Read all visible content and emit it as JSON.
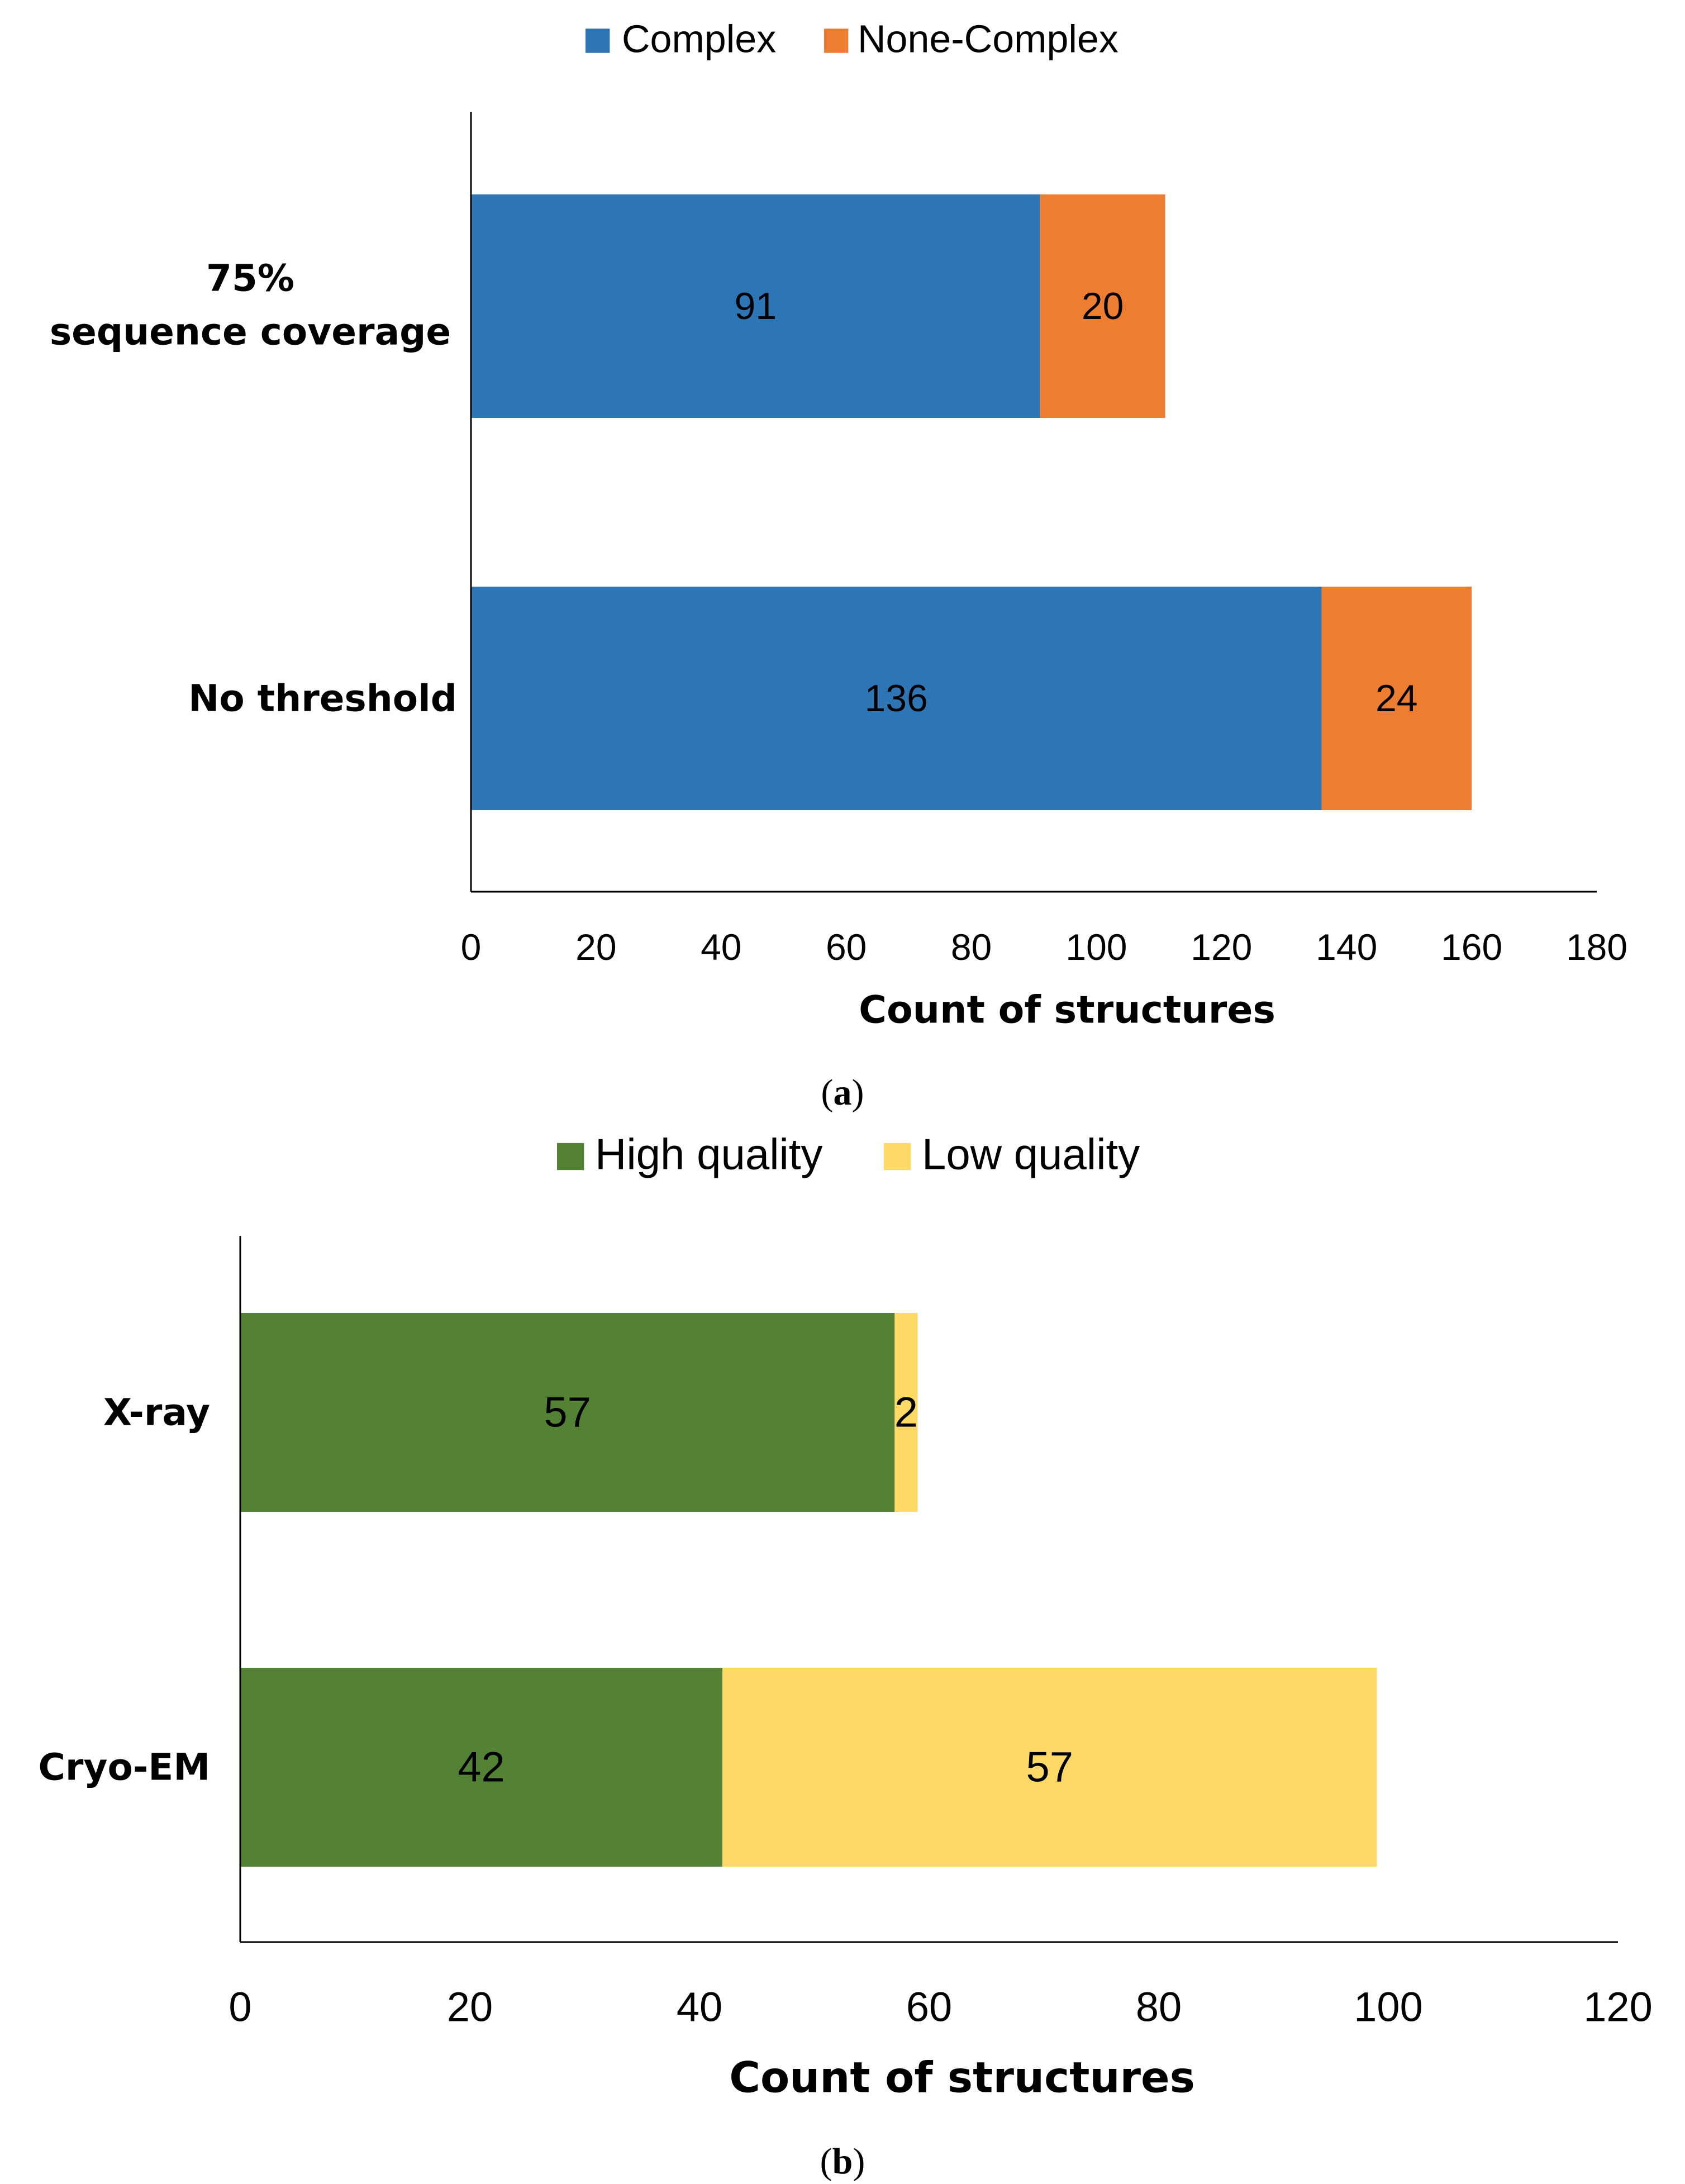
{
  "chart_data": [
    {
      "id": "a",
      "type": "bar",
      "orientation": "horizontal",
      "stacked": true,
      "caption": "a",
      "categories": [
        "75%\nsequence coverage",
        "No  threshold"
      ],
      "series": [
        {
          "name": "Complex",
          "color": "#2e75b6",
          "values": [
            91,
            136
          ]
        },
        {
          "name": "None-Complex",
          "color": "#ed7d31",
          "values": [
            20,
            24
          ]
        }
      ],
      "xlabel": "Count of structures",
      "ylabel": "",
      "xlim": [
        0,
        180
      ],
      "xticks": [
        0,
        20,
        40,
        60,
        80,
        100,
        120,
        140,
        160,
        180
      ],
      "grid": false,
      "legend": "top-center"
    },
    {
      "id": "b",
      "type": "bar",
      "orientation": "horizontal",
      "stacked": true,
      "caption": "b",
      "categories": [
        "X-ray",
        "Cryo-EM"
      ],
      "series": [
        {
          "name": "High quality",
          "color": "#548235",
          "values": [
            57,
            42
          ]
        },
        {
          "name": "Low quality",
          "color": "#ffd966",
          "values": [
            2,
            57
          ]
        }
      ],
      "xlabel": "Count of structures",
      "ylabel": "",
      "xlim": [
        0,
        120
      ],
      "xticks": [
        0,
        20,
        40,
        60,
        80,
        100,
        120
      ],
      "grid": false,
      "legend": "top-center"
    }
  ]
}
